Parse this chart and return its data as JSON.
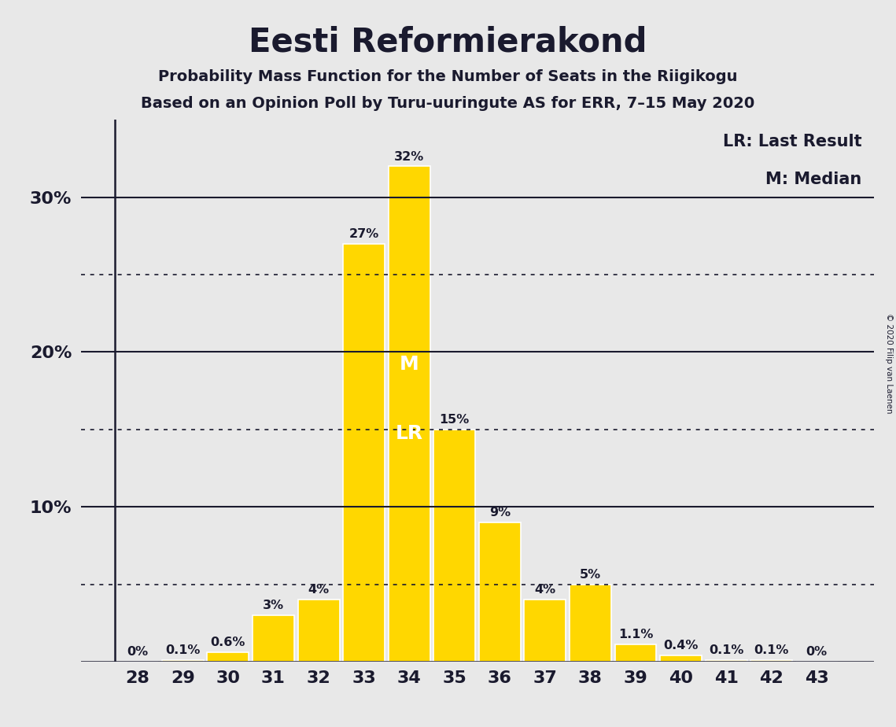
{
  "title": "Eesti Reformierakond",
  "subtitle1": "Probability Mass Function for the Number of Seats in the Riigikogu",
  "subtitle2": "Based on an Opinion Poll by Turu-uuringute AS for ERR, 7–15 May 2020",
  "copyright": "© 2020 Filip van Laenen",
  "categories": [
    28,
    29,
    30,
    31,
    32,
    33,
    34,
    35,
    36,
    37,
    38,
    39,
    40,
    41,
    42,
    43
  ],
  "values": [
    0.0,
    0.1,
    0.6,
    3.0,
    4.0,
    27.0,
    32.0,
    15.0,
    9.0,
    4.0,
    5.0,
    1.1,
    0.4,
    0.1,
    0.1,
    0.0
  ],
  "labels": [
    "0%",
    "0.1%",
    "0.6%",
    "3%",
    "4%",
    "27%",
    "32%",
    "15%",
    "9%",
    "4%",
    "5%",
    "1.1%",
    "0.4%",
    "0.1%",
    "0.1%",
    "0%"
  ],
  "bar_color": "#FFD700",
  "background_color": "#E8E8E8",
  "median_seat": 34,
  "lr_seat": 34,
  "legend_lr": "LR: Last Result",
  "legend_m": "M: Median",
  "solid_grid": [
    0,
    10,
    20,
    30
  ],
  "dotted_grid": [
    5,
    15,
    25
  ],
  "ylim": [
    0,
    35
  ],
  "text_color": "#1a1a2e"
}
